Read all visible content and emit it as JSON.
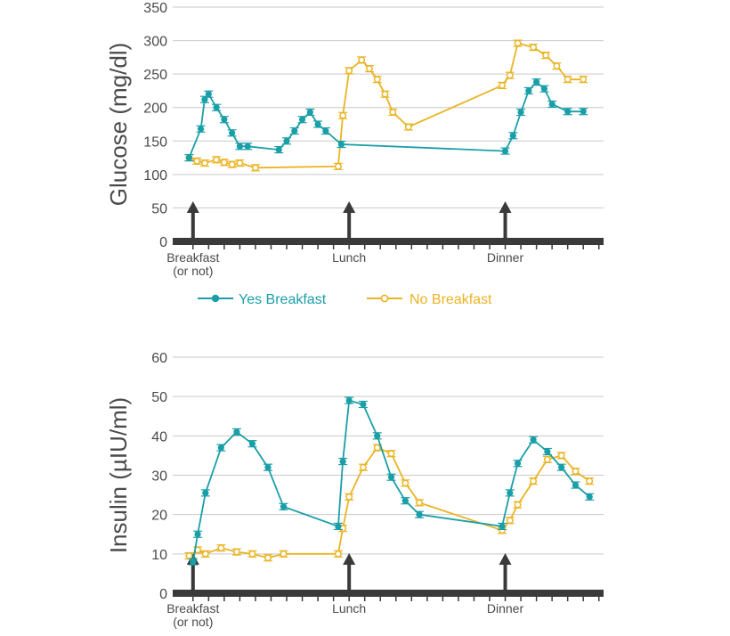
{
  "colors": {
    "yes": "#1a9fa8",
    "no": "#eab423",
    "axis": "#3a3a3a",
    "grid": "#c9c9c9",
    "text": "#4a4a4a"
  },
  "legend": {
    "yes_label": "Yes Breakfast",
    "no_label": "No Breakfast"
  },
  "chart_data": [
    {
      "type": "line",
      "id": "glucose",
      "title": "",
      "ylabel": "Glucose (mg/dl)",
      "xlabel": "",
      "ylim": [
        0,
        350
      ],
      "yticks": [
        0,
        50,
        100,
        150,
        200,
        250,
        300,
        350
      ],
      "grid": true,
      "meal_labels": [
        "Breakfast",
        "(or not)",
        "Lunch",
        "Dinner"
      ],
      "meal_times": [
        0,
        10,
        20
      ],
      "xlim": [
        -1.3,
        26.3
      ],
      "series": [
        {
          "name": "Yes Breakfast",
          "x": [
            -0.25,
            0.5,
            0.75,
            1,
            1.5,
            2,
            2.5,
            3,
            3.5,
            5.5,
            6,
            6.5,
            7,
            7.5,
            8,
            8.5,
            9.5,
            20,
            20.5,
            21,
            21.5,
            22,
            22.5,
            23,
            24,
            25
          ],
          "values": [
            125,
            168,
            212,
            220,
            200,
            182,
            162,
            142,
            142,
            137,
            150,
            165,
            182,
            193,
            175,
            165,
            145,
            135,
            158,
            193,
            225,
            238,
            228,
            205,
            194,
            194
          ]
        },
        {
          "name": "No Breakfast",
          "x": [
            -0.25,
            0.25,
            0.75,
            1.5,
            2,
            2.5,
            3,
            4,
            9.3,
            9.6,
            10,
            10.8,
            11.3,
            11.8,
            12.3,
            12.8,
            13.8,
            19.8,
            20.3,
            20.8,
            21.8,
            22.6,
            23.3,
            24,
            25
          ],
          "values": [
            125,
            120,
            117,
            122,
            118,
            115,
            117,
            110,
            112,
            188,
            255,
            271,
            258,
            242,
            220,
            193,
            171,
            233,
            248,
            296,
            290,
            278,
            262,
            242,
            242
          ]
        }
      ]
    },
    {
      "type": "line",
      "id": "insulin",
      "title": "",
      "ylabel": "Insulin (µIU/ml)",
      "xlabel": "",
      "ylim": [
        0,
        60
      ],
      "yticks": [
        0,
        10,
        20,
        30,
        40,
        50,
        60
      ],
      "grid": true,
      "meal_labels": [
        "Breakfast",
        "(or not)",
        "Lunch",
        "Dinner"
      ],
      "meal_times": [
        0,
        10,
        20
      ],
      "xlim": [
        -1.3,
        26.3
      ],
      "series": [
        {
          "name": "Yes Breakfast",
          "x": [
            0,
            0.3,
            0.8,
            1.8,
            2.8,
            3.8,
            4.8,
            5.8,
            9.3,
            9.6,
            10,
            10.9,
            11.8,
            12.7,
            13.6,
            14.5,
            19.8,
            20.3,
            20.8,
            21.8,
            22.7,
            23.6,
            24.5,
            25.4
          ],
          "values": [
            8,
            15,
            25.5,
            37,
            41,
            38,
            32,
            22,
            17,
            33.5,
            49,
            48,
            40,
            29.5,
            23.5,
            20,
            17,
            25.5,
            33,
            39,
            36,
            32,
            27.5,
            24.5
          ]
        },
        {
          "name": "No Breakfast",
          "x": [
            -0.25,
            0.3,
            0.8,
            1.8,
            2.8,
            3.8,
            4.8,
            5.8,
            9.3,
            9.6,
            10,
            10.9,
            11.8,
            12.7,
            13.6,
            14.5,
            19.8,
            20.3,
            20.8,
            21.8,
            22.7,
            23.6,
            24.5,
            25.4
          ],
          "values": [
            9.5,
            11,
            10,
            11.5,
            10.5,
            10,
            9,
            10,
            10,
            16.5,
            24.5,
            32,
            37,
            35.5,
            28,
            23,
            16,
            18.5,
            22.5,
            28.5,
            34,
            35,
            31,
            28.5
          ]
        }
      ]
    }
  ]
}
